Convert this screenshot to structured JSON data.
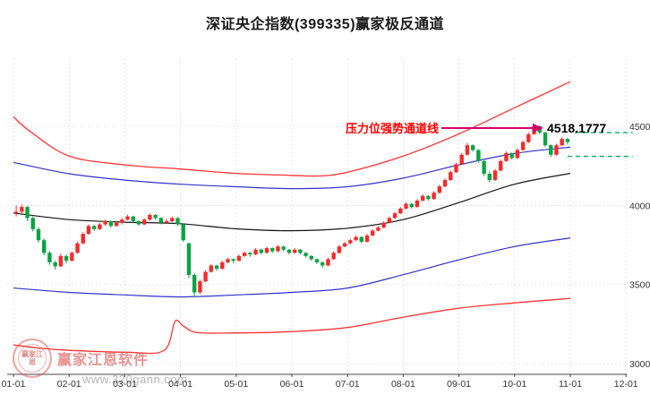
{
  "title": "深证央企指数(399335)赢家极反通道",
  "annotation": {
    "label": "压力位强势通道线",
    "value": "4518.1777",
    "text_color": "#ff0000",
    "arrow_color": "#d6006e"
  },
  "watermark": {
    "brand": "赢家江恩软件",
    "site": "www.320gann.com",
    "seal_text": "赢家江恩"
  },
  "colors": {
    "up_candle": "#f42b2b",
    "down_candle": "#0aa344",
    "axis": "#444444",
    "grid": "#c9c9c9",
    "tick_text": "#333333"
  },
  "chart_data": {
    "type": "candlestick",
    "title": "深证央企指数(399335)赢家极反通道",
    "x_ticks": [
      "01-01",
      "02-01",
      "03-01",
      "04-01",
      "05-01",
      "06-01",
      "07-01",
      "08-01",
      "09-01",
      "10-01",
      "11-01",
      "12-01"
    ],
    "y_ticks": [
      4500,
      4000,
      3500,
      3000
    ],
    "ylim": [
      2930,
      4900
    ],
    "candles_per_month": 10,
    "ohlc": [
      [
        3950,
        4000,
        3930,
        3960
      ],
      [
        3960,
        4005,
        3945,
        3990
      ],
      [
        3990,
        3995,
        3900,
        3920
      ],
      [
        3920,
        3930,
        3835,
        3850
      ],
      [
        3850,
        3860,
        3765,
        3780
      ],
      [
        3780,
        3790,
        3685,
        3700
      ],
      [
        3700,
        3710,
        3625,
        3640
      ],
      [
        3640,
        3650,
        3595,
        3615
      ],
      [
        3615,
        3695,
        3610,
        3680
      ],
      [
        3680,
        3690,
        3635,
        3650
      ],
      [
        3650,
        3710,
        3645,
        3700
      ],
      [
        3700,
        3770,
        3695,
        3760
      ],
      [
        3760,
        3830,
        3755,
        3820
      ],
      [
        3820,
        3880,
        3815,
        3870
      ],
      [
        3870,
        3875,
        3840,
        3850
      ],
      [
        3850,
        3890,
        3845,
        3880
      ],
      [
        3880,
        3910,
        3870,
        3900
      ],
      [
        3900,
        3905,
        3860,
        3870
      ],
      [
        3870,
        3900,
        3865,
        3890
      ],
      [
        3890,
        3920,
        3880,
        3910
      ],
      [
        3910,
        3940,
        3905,
        3930
      ],
      [
        3930,
        3935,
        3890,
        3900
      ],
      [
        3900,
        3905,
        3870,
        3880
      ],
      [
        3880,
        3920,
        3875,
        3910
      ],
      [
        3910,
        3950,
        3905,
        3940
      ],
      [
        3940,
        3945,
        3910,
        3920
      ],
      [
        3920,
        3925,
        3880,
        3890
      ],
      [
        3890,
        3915,
        3885,
        3900
      ],
      [
        3900,
        3930,
        3895,
        3920
      ],
      [
        3920,
        3925,
        3870,
        3880
      ],
      [
        3880,
        3885,
        3770,
        3780
      ],
      [
        3760,
        3765,
        3540,
        3560
      ],
      [
        3560,
        3570,
        3420,
        3450
      ],
      [
        3450,
        3530,
        3440,
        3520
      ],
      [
        3520,
        3590,
        3515,
        3580
      ],
      [
        3580,
        3630,
        3575,
        3620
      ],
      [
        3620,
        3625,
        3585,
        3600
      ],
      [
        3600,
        3650,
        3595,
        3640
      ],
      [
        3640,
        3670,
        3635,
        3660
      ],
      [
        3660,
        3665,
        3635,
        3650
      ],
      [
        3650,
        3690,
        3645,
        3680
      ],
      [
        3680,
        3710,
        3675,
        3700
      ],
      [
        3700,
        3705,
        3675,
        3690
      ],
      [
        3690,
        3730,
        3685,
        3720
      ],
      [
        3720,
        3725,
        3690,
        3700
      ],
      [
        3700,
        3740,
        3695,
        3730
      ],
      [
        3730,
        3735,
        3700,
        3710
      ],
      [
        3710,
        3750,
        3705,
        3740
      ],
      [
        3740,
        3745,
        3710,
        3720
      ],
      [
        3720,
        3725,
        3690,
        3700
      ],
      [
        3700,
        3730,
        3695,
        3720
      ],
      [
        3720,
        3725,
        3690,
        3700
      ],
      [
        3700,
        3705,
        3670,
        3680
      ],
      [
        3680,
        3685,
        3650,
        3660
      ],
      [
        3660,
        3665,
        3630,
        3640
      ],
      [
        3640,
        3645,
        3605,
        3620
      ],
      [
        3620,
        3670,
        3615,
        3660
      ],
      [
        3660,
        3710,
        3655,
        3700
      ],
      [
        3700,
        3750,
        3695,
        3740
      ],
      [
        3740,
        3770,
        3735,
        3760
      ],
      [
        3760,
        3790,
        3755,
        3780
      ],
      [
        3780,
        3810,
        3775,
        3800
      ],
      [
        3800,
        3805,
        3760,
        3770
      ],
      [
        3770,
        3820,
        3765,
        3810
      ],
      [
        3810,
        3850,
        3805,
        3840
      ],
      [
        3840,
        3870,
        3835,
        3860
      ],
      [
        3860,
        3900,
        3855,
        3890
      ],
      [
        3890,
        3930,
        3885,
        3920
      ],
      [
        3920,
        3960,
        3915,
        3950
      ],
      [
        3950,
        3990,
        3945,
        3980
      ],
      [
        3980,
        4020,
        3975,
        4010
      ],
      [
        4010,
        4015,
        3980,
        3990
      ],
      [
        3990,
        4040,
        3985,
        4030
      ],
      [
        4030,
        4070,
        4025,
        4060
      ],
      [
        4060,
        4065,
        4030,
        4040
      ],
      [
        4040,
        4090,
        4035,
        4080
      ],
      [
        4080,
        4130,
        4075,
        4120
      ],
      [
        4120,
        4170,
        4115,
        4160
      ],
      [
        4160,
        4220,
        4155,
        4210
      ],
      [
        4210,
        4270,
        4205,
        4260
      ],
      [
        4260,
        4330,
        4255,
        4320
      ],
      [
        4320,
        4395,
        4315,
        4380
      ],
      [
        4380,
        4385,
        4340,
        4350
      ],
      [
        4350,
        4355,
        4270,
        4280
      ],
      [
        4280,
        4285,
        4185,
        4200
      ],
      [
        4200,
        4210,
        4145,
        4160
      ],
      [
        4160,
        4230,
        4155,
        4220
      ],
      [
        4220,
        4290,
        4215,
        4280
      ],
      [
        4280,
        4340,
        4275,
        4330
      ],
      [
        4330,
        4335,
        4290,
        4300
      ],
      [
        4300,
        4360,
        4295,
        4350
      ],
      [
        4350,
        4410,
        4345,
        4400
      ],
      [
        4400,
        4460,
        4395,
        4450
      ],
      [
        4450,
        4518,
        4445,
        4500
      ],
      [
        4500,
        4505,
        4450,
        4460
      ],
      [
        4460,
        4465,
        4370,
        4380
      ],
      [
        4380,
        4385,
        4305,
        4320
      ],
      [
        4320,
        4390,
        4315,
        4380
      ],
      [
        4380,
        4430,
        4375,
        4420
      ],
      [
        4420,
        4425,
        4385,
        4400
      ]
    ],
    "lines": [
      {
        "name": "upper-red-channel-line",
        "color": "#ff3333",
        "width": 1.3,
        "points": [
          [
            0,
            4560
          ],
          [
            0.3,
            4468
          ],
          [
            1,
            4312
          ],
          [
            2,
            4256
          ],
          [
            3,
            4230
          ],
          [
            4,
            4202
          ],
          [
            5,
            4190
          ],
          [
            5.5,
            4186
          ],
          [
            6,
            4210
          ],
          [
            7,
            4312
          ],
          [
            8,
            4452
          ],
          [
            9,
            4617
          ],
          [
            10,
            4782
          ]
        ]
      },
      {
        "name": "upper-blue-channel-line",
        "color": "#3333cc",
        "width": 1.2,
        "points": [
          [
            0,
            4272
          ],
          [
            1,
            4200
          ],
          [
            2,
            4160
          ],
          [
            3,
            4134
          ],
          [
            4,
            4118
          ],
          [
            5,
            4106
          ],
          [
            6,
            4118
          ],
          [
            7,
            4172
          ],
          [
            8,
            4256
          ],
          [
            9,
            4328
          ],
          [
            10,
            4368
          ]
        ]
      },
      {
        "name": "middle-black-line",
        "color": "#151515",
        "width": 1.2,
        "points": [
          [
            0,
            3952
          ],
          [
            1,
            3910
          ],
          [
            2,
            3894
          ],
          [
            3,
            3884
          ],
          [
            4,
            3852
          ],
          [
            5,
            3840
          ],
          [
            6,
            3856
          ],
          [
            7,
            3910
          ],
          [
            8,
            4018
          ],
          [
            9,
            4134
          ],
          [
            10,
            4202
          ]
        ]
      },
      {
        "name": "lower-blue-channel-line",
        "color": "#3333cc",
        "width": 1.2,
        "points": [
          [
            0,
            3478
          ],
          [
            1,
            3450
          ],
          [
            2,
            3434
          ],
          [
            3,
            3422
          ],
          [
            4,
            3434
          ],
          [
            5,
            3450
          ],
          [
            6,
            3478
          ],
          [
            7,
            3562
          ],
          [
            8,
            3656
          ],
          [
            9,
            3740
          ],
          [
            10,
            3794
          ]
        ]
      },
      {
        "name": "lower-red-channel-line",
        "color": "#ff3333",
        "width": 1.3,
        "points": [
          [
            0,
            3118
          ],
          [
            0.5,
            3096
          ],
          [
            1,
            3084
          ],
          [
            2,
            3072
          ],
          [
            2.7,
            3082
          ],
          [
            2.9,
            3266
          ],
          [
            3.05,
            3238
          ],
          [
            3.3,
            3196
          ],
          [
            4,
            3194
          ],
          [
            5,
            3202
          ],
          [
            6,
            3228
          ],
          [
            7,
            3294
          ],
          [
            8,
            3350
          ],
          [
            9,
            3384
          ],
          [
            10,
            3412
          ]
        ]
      }
    ],
    "dashed_lines": [
      {
        "name": "resistance-dashed-line",
        "price": 4460,
        "t1": 10.08,
        "t2": 11.12,
        "color": "#00b050"
      },
      {
        "name": "current-price-dashed-line",
        "price": 4310,
        "t1": 9.95,
        "t2": 11.12,
        "color": "#00b050"
      }
    ],
    "resistance_value": 4518.1777,
    "legend_position": "none",
    "grid": true
  }
}
